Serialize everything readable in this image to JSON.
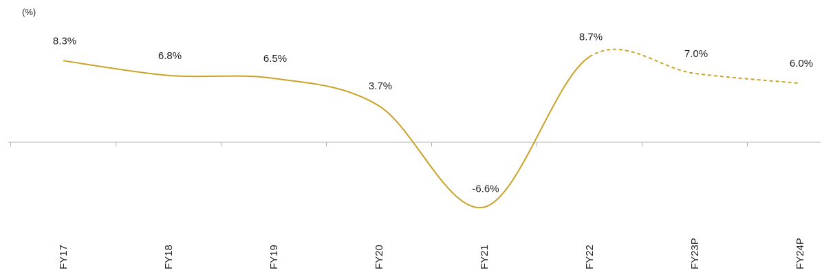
{
  "chart_data": {
    "type": "line",
    "unit_label": "(%)",
    "categories": [
      "FY17",
      "FY18",
      "FY19",
      "FY20",
      "FY21",
      "FY22",
      "FY23P",
      "FY24P"
    ],
    "values": [
      8.3,
      6.8,
      6.5,
      3.7,
      -6.6,
      8.7,
      7.0,
      6.0
    ],
    "labels": [
      "8.3%",
      "6.8%",
      "6.5%",
      "3.7%",
      "-6.6%",
      "8.7%",
      "7.0%",
      "6.0%"
    ],
    "projected_from_index": 5,
    "line_color": "#c9a227",
    "axis_color": "#b0b0b0",
    "grid": false,
    "legend": "none"
  }
}
